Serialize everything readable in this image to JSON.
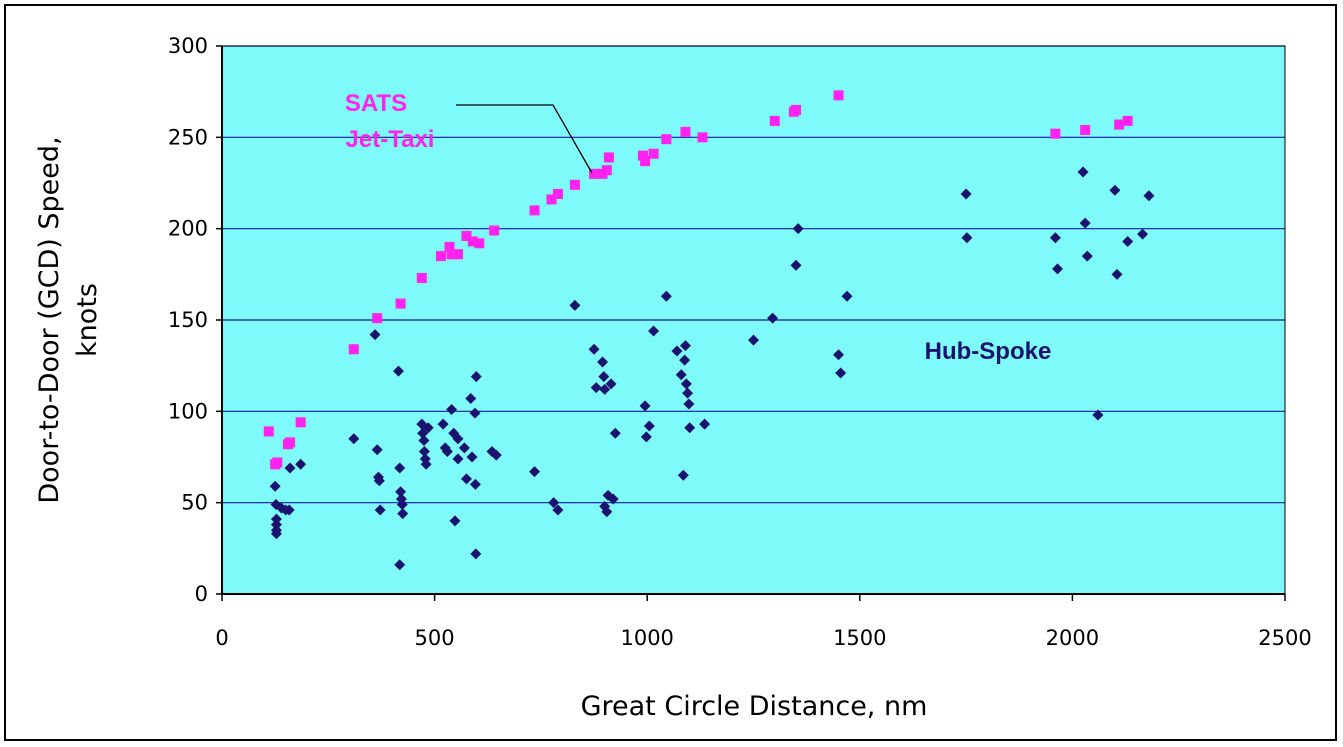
{
  "chart_data": {
    "type": "scatter",
    "title": "",
    "xlabel": "Great Circle Distance, nm",
    "ylabel_lines": [
      "Door-to-Door (GCD) Speed,",
      "knots"
    ],
    "xlim": [
      0,
      2500
    ],
    "ylim": [
      0,
      300
    ],
    "x_ticks": [
      "0",
      "500",
      "1000",
      "1500",
      "2000",
      "2500"
    ],
    "y_ticks": [
      "0",
      "50",
      "100",
      "150",
      "200",
      "250",
      "300"
    ],
    "grid": "horizontal",
    "legend": "none",
    "colors": {
      "plot_background": "#7ffafa",
      "gridline": "#1a1aa0",
      "sats": "#ff22ee",
      "hub": "#1a1470"
    },
    "series": [
      {
        "key": "sats",
        "marker": "square",
        "points": [
          [
            110,
            89
          ],
          [
            125,
            71
          ],
          [
            130,
            72
          ],
          [
            155,
            82
          ],
          [
            160,
            83
          ],
          [
            185,
            94
          ],
          [
            310,
            134
          ],
          [
            365,
            151
          ],
          [
            420,
            159
          ],
          [
            470,
            173
          ],
          [
            515,
            185
          ],
          [
            535,
            190
          ],
          [
            540,
            186
          ],
          [
            555,
            186
          ],
          [
            575,
            196
          ],
          [
            590,
            193
          ],
          [
            605,
            192
          ],
          [
            640,
            199
          ],
          [
            735,
            210
          ],
          [
            775,
            216
          ],
          [
            790,
            219
          ],
          [
            830,
            224
          ],
          [
            875,
            230
          ],
          [
            895,
            230
          ],
          [
            905,
            232
          ],
          [
            910,
            239
          ],
          [
            990,
            240
          ],
          [
            995,
            237
          ],
          [
            1015,
            241
          ],
          [
            1045,
            249
          ],
          [
            1090,
            253
          ],
          [
            1130,
            250
          ],
          [
            1300,
            259
          ],
          [
            1345,
            264
          ],
          [
            1350,
            265
          ],
          [
            1450,
            273
          ],
          [
            1960,
            252
          ],
          [
            2030,
            254
          ],
          [
            2110,
            257
          ],
          [
            2130,
            259
          ]
        ]
      },
      {
        "key": "hub",
        "marker": "diamond",
        "points": [
          [
            125,
            59
          ],
          [
            127,
            49
          ],
          [
            128,
            41
          ],
          [
            128,
            38
          ],
          [
            128,
            35
          ],
          [
            128,
            33
          ],
          [
            140,
            47
          ],
          [
            150,
            46
          ],
          [
            158,
            46
          ],
          [
            160,
            69
          ],
          [
            185,
            71
          ],
          [
            310,
            85
          ],
          [
            360,
            142
          ],
          [
            365,
            79
          ],
          [
            368,
            64
          ],
          [
            370,
            62
          ],
          [
            372,
            46
          ],
          [
            415,
            122
          ],
          [
            418,
            69
          ],
          [
            420,
            56
          ],
          [
            422,
            52
          ],
          [
            424,
            49
          ],
          [
            425,
            44
          ],
          [
            418,
            16
          ],
          [
            470,
            93
          ],
          [
            472,
            88
          ],
          [
            475,
            84
          ],
          [
            476,
            78
          ],
          [
            478,
            74
          ],
          [
            480,
            71
          ],
          [
            485,
            91
          ],
          [
            520,
            93
          ],
          [
            525,
            80
          ],
          [
            530,
            78
          ],
          [
            540,
            101
          ],
          [
            545,
            88
          ],
          [
            548,
            40
          ],
          [
            555,
            85
          ],
          [
            555,
            74
          ],
          [
            570,
            80
          ],
          [
            575,
            63
          ],
          [
            585,
            107
          ],
          [
            588,
            75
          ],
          [
            595,
            99
          ],
          [
            598,
            119
          ],
          [
            596,
            60
          ],
          [
            597,
            22
          ],
          [
            635,
            78
          ],
          [
            645,
            76
          ],
          [
            735,
            67
          ],
          [
            780,
            50
          ],
          [
            790,
            46
          ],
          [
            830,
            158
          ],
          [
            875,
            134
          ],
          [
            880,
            113
          ],
          [
            895,
            127
          ],
          [
            898,
            119
          ],
          [
            900,
            112
          ],
          [
            900,
            48
          ],
          [
            905,
            45
          ],
          [
            908,
            54
          ],
          [
            915,
            115
          ],
          [
            920,
            52
          ],
          [
            925,
            88
          ],
          [
            995,
            103
          ],
          [
            998,
            86
          ],
          [
            1005,
            92
          ],
          [
            1015,
            144
          ],
          [
            1045,
            163
          ],
          [
            1070,
            133
          ],
          [
            1080,
            120
          ],
          [
            1085,
            65
          ],
          [
            1088,
            128
          ],
          [
            1090,
            136
          ],
          [
            1092,
            115
          ],
          [
            1095,
            110
          ],
          [
            1098,
            104
          ],
          [
            1100,
            91
          ],
          [
            1135,
            93
          ],
          [
            1250,
            139
          ],
          [
            1295,
            151
          ],
          [
            1350,
            180
          ],
          [
            1355,
            200
          ],
          [
            1450,
            131
          ],
          [
            1455,
            121
          ],
          [
            1470,
            163
          ],
          [
            1750,
            219
          ],
          [
            1752,
            195
          ],
          [
            1960,
            195
          ],
          [
            1965,
            178
          ],
          [
            2025,
            231
          ],
          [
            2030,
            203
          ],
          [
            2035,
            185
          ],
          [
            2060,
            98
          ],
          [
            2100,
            221
          ],
          [
            2105,
            175
          ],
          [
            2130,
            193
          ],
          [
            2165,
            197
          ],
          [
            2180,
            218
          ]
        ]
      }
    ],
    "annotations": {
      "sats_line1": "SATS",
      "sats_line2": "Jet-Taxi",
      "hub": "Hub-Spoke"
    }
  }
}
